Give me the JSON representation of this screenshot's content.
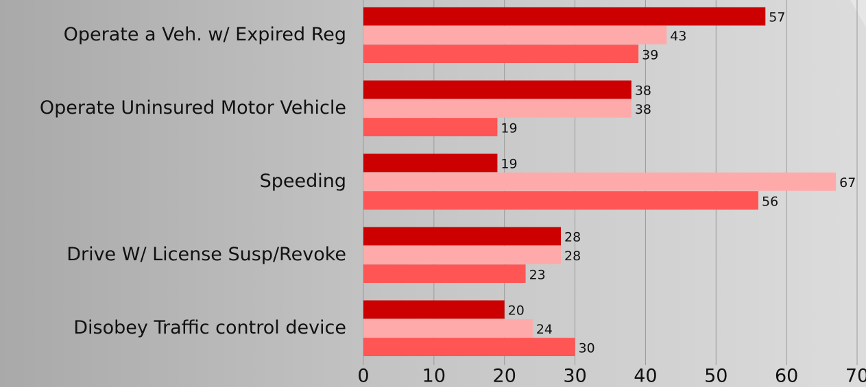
{
  "chart_data": {
    "type": "hbar",
    "categories": [
      "Operate a Veh. w/ Expired Reg",
      "Operate Uninsured Motor Vehicle",
      "Speeding",
      "Drive W/ License Susp/Revoke",
      "Disobey Traffic control device"
    ],
    "series": [
      {
        "color": "#cc0000",
        "values": [
          57,
          38,
          19,
          28,
          20
        ]
      },
      {
        "color": "#ffaaaa",
        "values": [
          43,
          38,
          67,
          28,
          24
        ]
      },
      {
        "color": "#ff5555",
        "values": [
          39,
          19,
          56,
          23,
          30
        ]
      }
    ],
    "xlim": [
      0,
      70
    ],
    "xticks": [
      0,
      10,
      20,
      30,
      40,
      50,
      60,
      70
    ],
    "grid": true
  }
}
